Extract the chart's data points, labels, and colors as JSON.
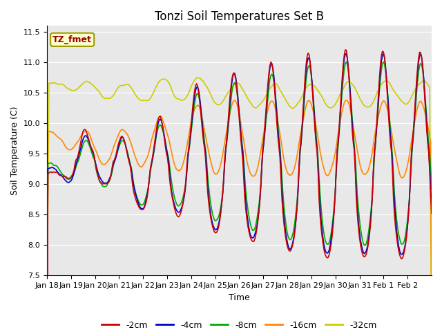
{
  "title": "Tonzi Soil Temperatures Set B",
  "xlabel": "Time",
  "ylabel": "Soil Temperature (C)",
  "ylim": [
    7.5,
    11.6
  ],
  "xlim_days": 16,
  "xtick_labels": [
    "Jan 18",
    "Jan 19",
    "Jan 20",
    "Jan 21",
    "Jan 22",
    "Jan 23",
    "Jan 24",
    "Jan 25",
    "Jan 26",
    "Jan 27",
    "Jan 28",
    "Jan 29",
    "Jan 30",
    "Jan 31",
    "Feb 1",
    "Feb 2"
  ],
  "legend_labels": [
    "-2cm",
    "-4cm",
    "-8cm",
    "-16cm",
    "-32cm"
  ],
  "line_colors": [
    "#cc0000",
    "#0000cc",
    "#00aa00",
    "#ff8800",
    "#cccc00"
  ],
  "bg_color": "#e8e8e8",
  "annotation_text": "TZ_fmet",
  "annotation_color": "#990000",
  "annotation_bg": "#ffffcc",
  "annotation_border": "#999900",
  "title_fontsize": 12,
  "axis_fontsize": 8,
  "legend_fontsize": 9
}
